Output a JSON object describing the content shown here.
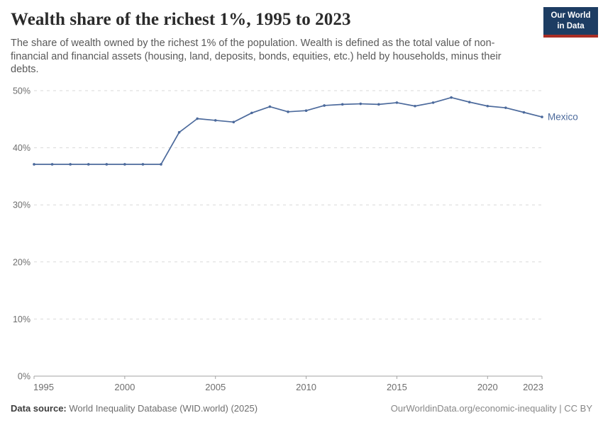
{
  "header": {
    "title": "Wealth share of the richest 1%, 1995 to 2023",
    "subtitle": "The share of wealth owned by the richest 1% of the population. Wealth is defined as the total value of non-financial and financial assets (housing, land, deposits, bonds, equities, etc.) held by households, minus their debts.",
    "logo": {
      "line1": "Our World",
      "line2": "in Data",
      "background": "#1d3d63",
      "accent": "#aa2e25"
    }
  },
  "chart_data": {
    "type": "line",
    "title": "Wealth share of the richest 1%, 1995 to 2023",
    "xlabel": "",
    "ylabel": "",
    "xlim": [
      1995,
      2023
    ],
    "ylim": [
      0,
      50
    ],
    "x_ticks": [
      1995,
      2000,
      2005,
      2010,
      2015,
      2020,
      2023
    ],
    "y_ticks": [
      0,
      10,
      20,
      30,
      40,
      50
    ],
    "y_tick_format": "{}%",
    "grid": "horizontal-dashed",
    "legend": "end-of-line-label",
    "series": [
      {
        "name": "Mexico",
        "color": "#4c6a9c",
        "x": [
          1995,
          1996,
          1997,
          1998,
          1999,
          2000,
          2001,
          2002,
          2003,
          2004,
          2005,
          2006,
          2007,
          2008,
          2009,
          2010,
          2011,
          2012,
          2013,
          2014,
          2015,
          2016,
          2017,
          2018,
          2019,
          2020,
          2021,
          2022,
          2023
        ],
        "values": [
          37.1,
          37.1,
          37.1,
          37.1,
          37.1,
          37.1,
          37.1,
          37.1,
          42.7,
          45.1,
          44.8,
          44.5,
          46.1,
          47.2,
          46.3,
          46.5,
          47.4,
          47.6,
          47.7,
          47.6,
          47.9,
          47.3,
          47.9,
          48.8,
          48.0,
          47.3,
          47.0,
          46.2,
          45.4
        ]
      }
    ]
  },
  "footer": {
    "source_label": "Data source:",
    "source_value": "World Inequality Database (WID.world) (2025)",
    "attribution": "OurWorldinData.org/economic-inequality | CC BY"
  }
}
